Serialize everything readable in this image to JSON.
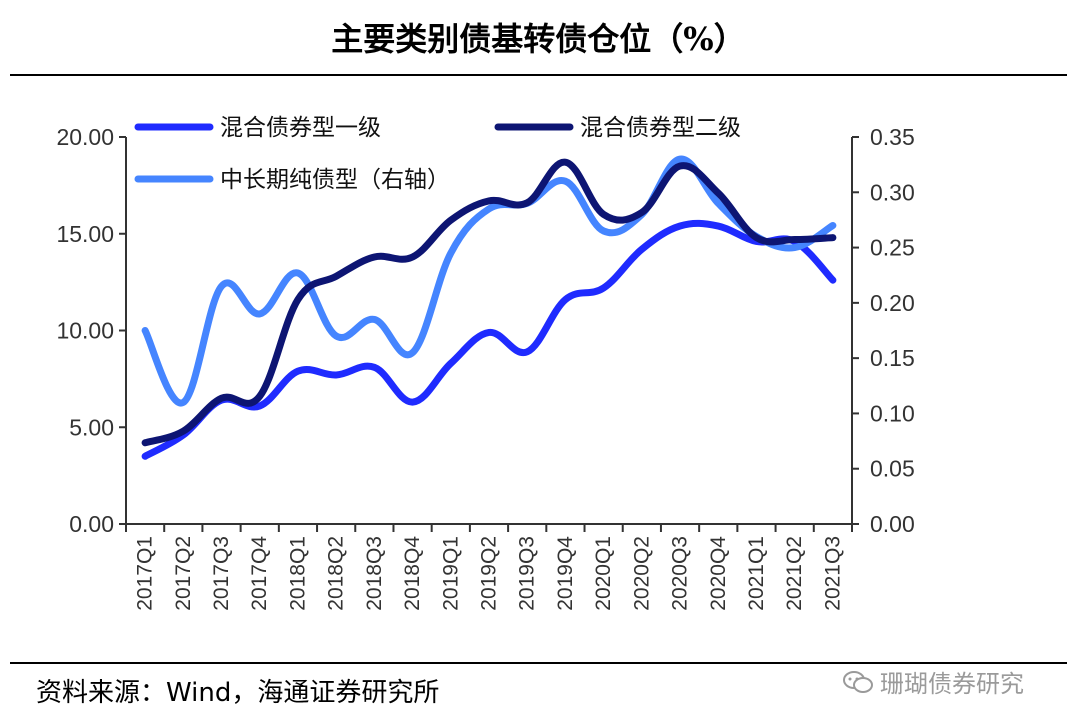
{
  "header": {
    "title": "主要类别债基转债仓位（%）"
  },
  "footer": {
    "source": "资料来源：Wind，海通证券研究所",
    "watermark": "珊瑚债券研究"
  },
  "colors": {
    "series1": "#1f2bff",
    "series2": "#0d1573",
    "series3": "#4585ff",
    "axis": "#333333"
  },
  "chart_data": {
    "type": "line",
    "title": "主要类别债基转债仓位（%）",
    "categories": [
      "2017Q1",
      "2017Q2",
      "2017Q3",
      "2017Q4",
      "2018Q1",
      "2018Q2",
      "2018Q3",
      "2018Q4",
      "2019Q1",
      "2019Q2",
      "2019Q3",
      "2019Q4",
      "2020Q1",
      "2020Q2",
      "2020Q3",
      "2020Q4",
      "2021Q1",
      "2021Q2",
      "2021Q3"
    ],
    "left_axis": {
      "min": 0,
      "max": 20,
      "ticks": [
        "0.00",
        "5.00",
        "10.00",
        "15.00",
        "20.00"
      ]
    },
    "right_axis": {
      "min": 0,
      "max": 0.35,
      "ticks": [
        "0.00",
        "0.05",
        "0.10",
        "0.15",
        "0.20",
        "0.25",
        "0.30",
        "0.35"
      ]
    },
    "series": [
      {
        "name": "混合债券型一级",
        "axis": "left",
        "color": "#1f2bff",
        "values": [
          3.5,
          4.6,
          6.4,
          6.1,
          7.9,
          7.7,
          8.1,
          6.3,
          8.3,
          9.9,
          8.9,
          11.6,
          12.2,
          14.2,
          15.4,
          15.4,
          14.6,
          14.6,
          12.6
        ]
      },
      {
        "name": "混合债券型二级",
        "axis": "left",
        "color": "#0d1573",
        "values": [
          4.2,
          4.8,
          6.5,
          6.6,
          11.6,
          12.8,
          13.8,
          13.8,
          15.7,
          16.7,
          16.6,
          18.7,
          16.0,
          16.1,
          18.5,
          17.1,
          14.8,
          14.7,
          14.8
        ]
      },
      {
        "name": "中长期纯债型（右轴）",
        "axis": "right",
        "color": "#4585ff",
        "values": [
          0.175,
          0.11,
          0.215,
          0.19,
          0.227,
          0.17,
          0.185,
          0.155,
          0.245,
          0.285,
          0.29,
          0.31,
          0.265,
          0.28,
          0.33,
          0.29,
          0.26,
          0.25,
          0.27
        ]
      }
    ]
  }
}
